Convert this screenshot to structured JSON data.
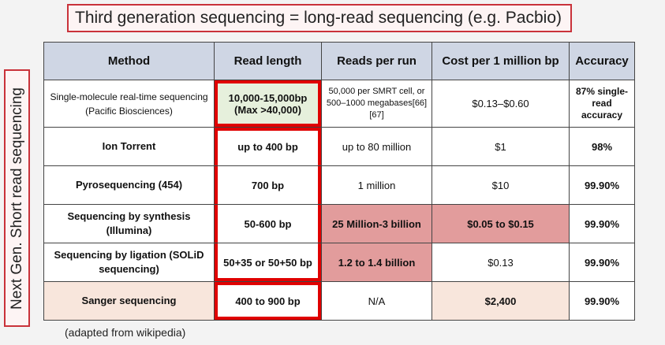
{
  "title": "Third generation sequencing = long-read sequencing (e.g. Pacbio)",
  "side_label": "Next Gen. Short read sequencing",
  "headers": [
    "Method",
    "Read length",
    "Reads per run",
    "Cost per 1 million bp",
    "Accuracy"
  ],
  "rows": [
    {
      "method": "Single-molecule real-time sequencing (Pacific Biosciences)",
      "read_length": "10,000-15,000bp (Max >40,000)",
      "reads_per_run": "50,000 per SMRT cell, or 500–1000 megabases[66][67]",
      "cost": "$0.13–$0.60",
      "accuracy": "87% single-read accuracy"
    },
    {
      "method": "Ion Torrent",
      "read_length": "up to 400 bp",
      "reads_per_run": "up to 80 million",
      "cost": "$1",
      "accuracy": "98%"
    },
    {
      "method": "Pyrosequencing (454)",
      "read_length": "700 bp",
      "reads_per_run": "1 million",
      "cost": "$10",
      "accuracy": "99.90%"
    },
    {
      "method": "Sequencing by synthesis (Illumina)",
      "read_length": "50-600 bp",
      "reads_per_run": "25 Million-3 billion",
      "cost": "$0.05 to $0.15",
      "accuracy": "99.90%"
    },
    {
      "method": "Sequencing by ligation (SOLiD sequencing)",
      "read_length": "50+35 or 50+50 bp",
      "reads_per_run": "1.2 to 1.4 billion",
      "cost": "$0.13",
      "accuracy": "99.90%"
    },
    {
      "method": "Sanger sequencing",
      "read_length": "400 to 900 bp",
      "reads_per_run": "N/A",
      "cost": "$2,400",
      "accuracy": "99.90%"
    }
  ],
  "source": "(adapted from wikipedia)",
  "colors": {
    "header_bg": "#cfd6e4",
    "highlight_red": "#e29c9c",
    "highlight_green": "#e6f0dc",
    "highlight_peach": "#f8e6dc",
    "outline_red": "#e00000"
  }
}
